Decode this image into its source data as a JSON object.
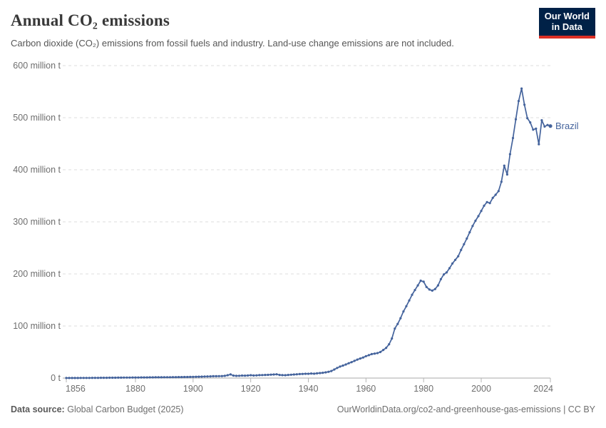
{
  "header": {
    "title": "Annual CO₂ emissions",
    "subtitle": "Carbon dioxide (CO₂) emissions from fossil fuels and industry. Land-use change emissions are not included.",
    "logo_line1": "Our World",
    "logo_line2": "in Data",
    "logo_bg_color": "#002147",
    "logo_accent_color": "#dc2f25"
  },
  "footer": {
    "source_label": "Data source:",
    "source_text": "Global Carbon Budget (2025)",
    "credit_text": "OurWorldinData.org/co2-and-greenhouse-gas-emissions | CC BY"
  },
  "chart_data": {
    "type": "line",
    "title": "Annual CO₂ emissions",
    "entity": "Brazil",
    "line_color": "#44639c",
    "grid": true,
    "legend_position": "end-of-line-label",
    "ylim": [
      0,
      600
    ],
    "y_ticks": [
      {
        "value": 0,
        "label": "0 t"
      },
      {
        "value": 100,
        "label": "100 million t"
      },
      {
        "value": 200,
        "label": "200 million t"
      },
      {
        "value": 300,
        "label": "300 million t"
      },
      {
        "value": 400,
        "label": "400 million t"
      },
      {
        "value": 500,
        "label": "500 million t"
      },
      {
        "value": 600,
        "label": "600 million t"
      }
    ],
    "x_ticks": [
      1856,
      1880,
      1900,
      1920,
      1940,
      1960,
      1980,
      2000,
      2024
    ],
    "x_start": 1856,
    "x_end": 2024,
    "unit": "million t",
    "values": [
      0.1,
      0.12,
      0.14,
      0.16,
      0.2,
      0.22,
      0.25,
      0.28,
      0.3,
      0.35,
      0.4,
      0.45,
      0.5,
      0.55,
      0.6,
      0.65,
      0.7,
      0.75,
      0.8,
      0.85,
      0.9,
      0.95,
      1.0,
      1.05,
      1.1,
      1.15,
      1.2,
      1.25,
      1.3,
      1.35,
      1.4,
      1.45,
      1.5,
      1.55,
      1.6,
      1.65,
      1.7,
      1.75,
      1.8,
      1.85,
      1.9,
      2.0,
      2.1,
      2.2,
      2.3,
      2.5,
      2.6,
      2.8,
      3.0,
      3.2,
      3.3,
      3.6,
      3.5,
      3.7,
      3.9,
      4.3,
      5.5,
      7.0,
      4.8,
      4.2,
      4.4,
      4.8,
      4.6,
      5.0,
      5.5,
      5.0,
      5.2,
      5.6,
      5.8,
      6.0,
      6.1,
      6.6,
      6.9,
      7.3,
      6.0,
      5.6,
      5.5,
      6.0,
      6.4,
      6.8,
      7.2,
      7.7,
      7.9,
      8.2,
      8.2,
      8.8,
      8.4,
      9.0,
      9.6,
      10.1,
      11.0,
      12.0,
      13.5,
      16.5,
      19.5,
      22,
      24,
      26,
      28.5,
      30.5,
      33,
      35.5,
      37.5,
      39.5,
      42,
      44,
      46,
      47,
      48,
      50,
      54,
      58,
      65,
      76,
      95,
      104,
      115,
      128,
      138,
      149,
      160,
      169,
      178,
      187,
      185,
      175,
      170,
      168,
      171,
      178,
      190,
      199,
      203,
      211,
      220,
      227,
      234,
      246,
      257,
      268,
      280,
      292,
      302,
      311,
      321,
      331,
      338,
      336,
      346,
      352,
      359,
      377,
      408,
      391,
      430,
      461,
      497,
      532,
      556,
      525,
      499,
      491,
      477,
      479,
      449,
      495,
      483,
      486,
      484
    ]
  }
}
